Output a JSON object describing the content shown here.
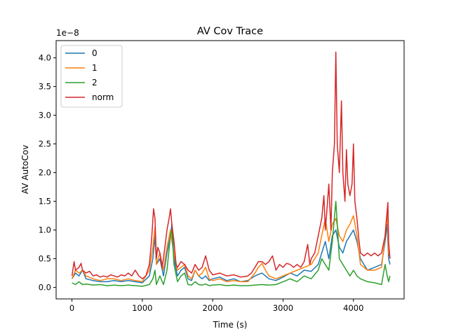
{
  "chart_data": {
    "type": "line",
    "title": "AV Cov Trace",
    "xlabel": "Time (s)",
    "ylabel": "AV AutoCov",
    "y_multiplier": "1e−8",
    "xlim": [
      -225,
      4720
    ],
    "ylim": [
      -0.2,
      4.3
    ],
    "x_ticks": [
      0,
      1000,
      2000,
      3000,
      4000
    ],
    "x_tick_labels": [
      "0",
      "1000",
      "2000",
      "3000",
      "4000"
    ],
    "y_ticks": [
      0.0,
      0.5,
      1.0,
      1.5,
      2.0,
      2.5,
      3.0,
      3.5,
      4.0
    ],
    "y_tick_labels": [
      "0.0",
      "0.5",
      "1.0",
      "1.5",
      "2.0",
      "2.5",
      "3.0",
      "3.5",
      "4.0"
    ],
    "grid": false,
    "legend_position": "upper-left",
    "series": [
      {
        "name": "0",
        "color": "#1f77b4",
        "points": [
          [
            0,
            0.15
          ],
          [
            50,
            0.25
          ],
          [
            100,
            0.2
          ],
          [
            150,
            0.3
          ],
          [
            200,
            0.15
          ],
          [
            300,
            0.12
          ],
          [
            400,
            0.1
          ],
          [
            500,
            0.1
          ],
          [
            600,
            0.12
          ],
          [
            700,
            0.1
          ],
          [
            800,
            0.12
          ],
          [
            900,
            0.1
          ],
          [
            1000,
            0.08
          ],
          [
            1100,
            0.2
          ],
          [
            1150,
            0.5
          ],
          [
            1180,
            0.9
          ],
          [
            1200,
            0.4
          ],
          [
            1250,
            0.5
          ],
          [
            1300,
            0.2
          ],
          [
            1350,
            0.6
          ],
          [
            1400,
            0.9
          ],
          [
            1420,
            1.1
          ],
          [
            1450,
            0.5
          ],
          [
            1500,
            0.2
          ],
          [
            1550,
            0.3
          ],
          [
            1600,
            0.35
          ],
          [
            1650,
            0.15
          ],
          [
            1700,
            0.12
          ],
          [
            1750,
            0.3
          ],
          [
            1800,
            0.2
          ],
          [
            1850,
            0.15
          ],
          [
            1900,
            0.2
          ],
          [
            1950,
            0.12
          ],
          [
            2000,
            0.15
          ],
          [
            2100,
            0.18
          ],
          [
            2200,
            0.12
          ],
          [
            2300,
            0.15
          ],
          [
            2400,
            0.1
          ],
          [
            2500,
            0.12
          ],
          [
            2600,
            0.2
          ],
          [
            2700,
            0.25
          ],
          [
            2800,
            0.15
          ],
          [
            2900,
            0.12
          ],
          [
            3000,
            0.18
          ],
          [
            3100,
            0.25
          ],
          [
            3200,
            0.2
          ],
          [
            3300,
            0.3
          ],
          [
            3400,
            0.28
          ],
          [
            3500,
            0.4
          ],
          [
            3550,
            0.6
          ],
          [
            3600,
            0.8
          ],
          [
            3650,
            0.5
          ],
          [
            3700,
            0.9
          ],
          [
            3750,
            1.0
          ],
          [
            3800,
            0.7
          ],
          [
            3850,
            0.6
          ],
          [
            3900,
            0.8
          ],
          [
            3950,
            0.9
          ],
          [
            4000,
            1.0
          ],
          [
            4050,
            0.8
          ],
          [
            4100,
            0.5
          ],
          [
            4200,
            0.3
          ],
          [
            4300,
            0.35
          ],
          [
            4400,
            0.4
          ],
          [
            4450,
            0.8
          ],
          [
            4480,
            1.1
          ],
          [
            4500,
            0.5
          ],
          [
            4520,
            0.4
          ]
        ]
      },
      {
        "name": "1",
        "color": "#ff7f0e",
        "points": [
          [
            0,
            0.15
          ],
          [
            50,
            0.3
          ],
          [
            100,
            0.25
          ],
          [
            150,
            0.3
          ],
          [
            200,
            0.2
          ],
          [
            300,
            0.15
          ],
          [
            400,
            0.12
          ],
          [
            500,
            0.15
          ],
          [
            600,
            0.15
          ],
          [
            700,
            0.12
          ],
          [
            800,
            0.15
          ],
          [
            900,
            0.12
          ],
          [
            1000,
            0.1
          ],
          [
            1100,
            0.3
          ],
          [
            1150,
            0.7
          ],
          [
            1180,
            1.05
          ],
          [
            1200,
            0.4
          ],
          [
            1250,
            0.6
          ],
          [
            1300,
            0.3
          ],
          [
            1350,
            0.7
          ],
          [
            1400,
            1.0
          ],
          [
            1420,
            0.8
          ],
          [
            1450,
            0.6
          ],
          [
            1500,
            0.3
          ],
          [
            1550,
            0.35
          ],
          [
            1600,
            0.4
          ],
          [
            1650,
            0.2
          ],
          [
            1700,
            0.15
          ],
          [
            1750,
            0.3
          ],
          [
            1800,
            0.2
          ],
          [
            1850,
            0.25
          ],
          [
            1900,
            0.35
          ],
          [
            1950,
            0.15
          ],
          [
            2000,
            0.12
          ],
          [
            2100,
            0.15
          ],
          [
            2200,
            0.1
          ],
          [
            2300,
            0.12
          ],
          [
            2400,
            0.1
          ],
          [
            2500,
            0.1
          ],
          [
            2600,
            0.25
          ],
          [
            2650,
            0.35
          ],
          [
            2700,
            0.42
          ],
          [
            2750,
            0.3
          ],
          [
            2800,
            0.2
          ],
          [
            2900,
            0.15
          ],
          [
            3000,
            0.2
          ],
          [
            3100,
            0.25
          ],
          [
            3200,
            0.3
          ],
          [
            3300,
            0.35
          ],
          [
            3400,
            0.4
          ],
          [
            3450,
            0.5
          ],
          [
            3500,
            0.6
          ],
          [
            3550,
            0.9
          ],
          [
            3600,
            1.2
          ],
          [
            3650,
            0.8
          ],
          [
            3700,
            1.1
          ],
          [
            3750,
            1.2
          ],
          [
            3800,
            0.9
          ],
          [
            3850,
            0.8
          ],
          [
            3900,
            1.0
          ],
          [
            3950,
            1.1
          ],
          [
            4000,
            1.25
          ],
          [
            4050,
            0.9
          ],
          [
            4100,
            0.4
          ],
          [
            4200,
            0.3
          ],
          [
            4300,
            0.3
          ],
          [
            4400,
            0.35
          ],
          [
            4450,
            0.9
          ],
          [
            4480,
            1.3
          ],
          [
            4500,
            0.6
          ],
          [
            4520,
            0.55
          ]
        ]
      },
      {
        "name": "2",
        "color": "#2ca02c",
        "points": [
          [
            0,
            0.08
          ],
          [
            50,
            0.05
          ],
          [
            100,
            0.1
          ],
          [
            150,
            0.05
          ],
          [
            200,
            0.06
          ],
          [
            300,
            0.04
          ],
          [
            400,
            0.05
          ],
          [
            500,
            0.03
          ],
          [
            600,
            0.04
          ],
          [
            700,
            0.03
          ],
          [
            800,
            0.04
          ],
          [
            900,
            0.03
          ],
          [
            1000,
            0.02
          ],
          [
            1100,
            0.05
          ],
          [
            1150,
            0.15
          ],
          [
            1180,
            0.3
          ],
          [
            1200,
            0.05
          ],
          [
            1250,
            0.2
          ],
          [
            1300,
            0.05
          ],
          [
            1350,
            0.3
          ],
          [
            1400,
            0.9
          ],
          [
            1420,
            1.0
          ],
          [
            1450,
            0.4
          ],
          [
            1500,
            0.1
          ],
          [
            1550,
            0.2
          ],
          [
            1600,
            0.25
          ],
          [
            1650,
            0.05
          ],
          [
            1700,
            0.04
          ],
          [
            1750,
            0.1
          ],
          [
            1800,
            0.05
          ],
          [
            1850,
            0.04
          ],
          [
            1900,
            0.06
          ],
          [
            1950,
            0.03
          ],
          [
            2000,
            0.04
          ],
          [
            2100,
            0.05
          ],
          [
            2200,
            0.03
          ],
          [
            2300,
            0.04
          ],
          [
            2400,
            0.03
          ],
          [
            2500,
            0.03
          ],
          [
            2600,
            0.04
          ],
          [
            2700,
            0.05
          ],
          [
            2800,
            0.04
          ],
          [
            2900,
            0.05
          ],
          [
            3000,
            0.1
          ],
          [
            3100,
            0.15
          ],
          [
            3200,
            0.1
          ],
          [
            3300,
            0.2
          ],
          [
            3400,
            0.15
          ],
          [
            3500,
            0.3
          ],
          [
            3550,
            0.5
          ],
          [
            3600,
            0.4
          ],
          [
            3650,
            0.3
          ],
          [
            3700,
            0.8
          ],
          [
            3750,
            1.5
          ],
          [
            3800,
            0.5
          ],
          [
            3850,
            0.4
          ],
          [
            3900,
            0.3
          ],
          [
            3950,
            0.2
          ],
          [
            4000,
            0.3
          ],
          [
            4050,
            0.2
          ],
          [
            4100,
            0.15
          ],
          [
            4200,
            0.1
          ],
          [
            4300,
            0.08
          ],
          [
            4400,
            0.05
          ],
          [
            4450,
            0.4
          ],
          [
            4480,
            0.2
          ],
          [
            4500,
            0.1
          ],
          [
            4520,
            0.2
          ]
        ]
      },
      {
        "name": "norm",
        "color": "#d62728",
        "points": [
          [
            0,
            0.2
          ],
          [
            30,
            0.45
          ],
          [
            50,
            0.3
          ],
          [
            100,
            0.35
          ],
          [
            130,
            0.42
          ],
          [
            150,
            0.3
          ],
          [
            200,
            0.25
          ],
          [
            250,
            0.28
          ],
          [
            300,
            0.2
          ],
          [
            350,
            0.22
          ],
          [
            400,
            0.18
          ],
          [
            450,
            0.2
          ],
          [
            500,
            0.18
          ],
          [
            550,
            0.22
          ],
          [
            600,
            0.2
          ],
          [
            650,
            0.18
          ],
          [
            700,
            0.22
          ],
          [
            750,
            0.2
          ],
          [
            800,
            0.25
          ],
          [
            850,
            0.2
          ],
          [
            900,
            0.3
          ],
          [
            950,
            0.2
          ],
          [
            1000,
            0.15
          ],
          [
            1050,
            0.2
          ],
          [
            1100,
            0.4
          ],
          [
            1130,
            0.8
          ],
          [
            1160,
            1.37
          ],
          [
            1180,
            1.2
          ],
          [
            1200,
            0.5
          ],
          [
            1220,
            0.7
          ],
          [
            1250,
            0.6
          ],
          [
            1280,
            0.35
          ],
          [
            1300,
            0.5
          ],
          [
            1350,
            1.0
          ],
          [
            1380,
            1.2
          ],
          [
            1400,
            1.37
          ],
          [
            1420,
            1.1
          ],
          [
            1450,
            0.8
          ],
          [
            1480,
            0.4
          ],
          [
            1500,
            0.35
          ],
          [
            1550,
            0.45
          ],
          [
            1600,
            0.4
          ],
          [
            1650,
            0.3
          ],
          [
            1700,
            0.25
          ],
          [
            1750,
            0.4
          ],
          [
            1800,
            0.3
          ],
          [
            1850,
            0.35
          ],
          [
            1900,
            0.55
          ],
          [
            1950,
            0.3
          ],
          [
            2000,
            0.22
          ],
          [
            2100,
            0.25
          ],
          [
            2200,
            0.2
          ],
          [
            2300,
            0.22
          ],
          [
            2400,
            0.18
          ],
          [
            2500,
            0.2
          ],
          [
            2550,
            0.25
          ],
          [
            2600,
            0.35
          ],
          [
            2650,
            0.45
          ],
          [
            2700,
            0.45
          ],
          [
            2750,
            0.4
          ],
          [
            2800,
            0.45
          ],
          [
            2850,
            0.55
          ],
          [
            2900,
            0.3
          ],
          [
            2950,
            0.4
          ],
          [
            3000,
            0.35
          ],
          [
            3050,
            0.42
          ],
          [
            3100,
            0.4
          ],
          [
            3150,
            0.35
          ],
          [
            3200,
            0.4
          ],
          [
            3250,
            0.35
          ],
          [
            3300,
            0.45
          ],
          [
            3350,
            0.75
          ],
          [
            3380,
            0.4
          ],
          [
            3400,
            0.5
          ],
          [
            3450,
            0.6
          ],
          [
            3500,
            0.9
          ],
          [
            3550,
            1.2
          ],
          [
            3580,
            1.6
          ],
          [
            3600,
            1.0
          ],
          [
            3620,
            1.3
          ],
          [
            3650,
            1.8
          ],
          [
            3680,
            1.0
          ],
          [
            3700,
            2.0
          ],
          [
            3730,
            2.5
          ],
          [
            3750,
            4.1
          ],
          [
            3770,
            2.5
          ],
          [
            3800,
            2.0
          ],
          [
            3830,
            3.25
          ],
          [
            3850,
            2.0
          ],
          [
            3880,
            1.5
          ],
          [
            3900,
            2.4
          ],
          [
            3920,
            1.8
          ],
          [
            3950,
            1.6
          ],
          [
            3980,
            1.8
          ],
          [
            4000,
            2.5
          ],
          [
            4020,
            1.5
          ],
          [
            4050,
            1.2
          ],
          [
            4080,
            0.8
          ],
          [
            4100,
            0.6
          ],
          [
            4150,
            0.55
          ],
          [
            4200,
            0.6
          ],
          [
            4250,
            0.55
          ],
          [
            4300,
            0.6
          ],
          [
            4350,
            0.55
          ],
          [
            4400,
            0.6
          ],
          [
            4450,
            0.9
          ],
          [
            4470,
            1.2
          ],
          [
            4490,
            1.48
          ],
          [
            4500,
            0.8
          ],
          [
            4520,
            0.5
          ]
        ]
      }
    ]
  }
}
